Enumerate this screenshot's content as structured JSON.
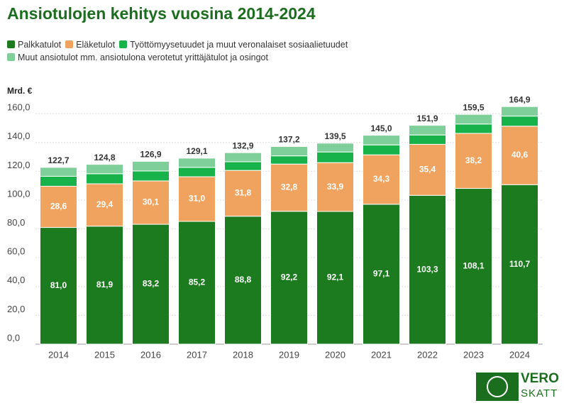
{
  "chart_data": {
    "type": "stacked-bar",
    "title": "Ansiotulojen kehitys vuosina 2014-2024",
    "y_label": "Mrd. €",
    "categories": [
      "2014",
      "2015",
      "2016",
      "2017",
      "2018",
      "2019",
      "2020",
      "2021",
      "2022",
      "2023",
      "2024"
    ],
    "series": [
      {
        "name": "Palkkatulot",
        "color": "#1c7a1f",
        "values": [
          81.0,
          81.9,
          83.2,
          85.2,
          88.8,
          92.2,
          92.1,
          97.1,
          103.3,
          108.1,
          110.7
        ],
        "value_labels": [
          "81,0",
          "81,9",
          "83,2",
          "85,2",
          "88,8",
          "92,2",
          "92,1",
          "97,1",
          "103,3",
          "108,1",
          "110,7"
        ]
      },
      {
        "name": "Eläketulot",
        "color": "#f0a35e",
        "values": [
          28.6,
          29.4,
          30.1,
          31.0,
          31.8,
          32.8,
          33.9,
          34.3,
          35.4,
          38.2,
          40.6
        ],
        "value_labels": [
          "28,6",
          "29,4",
          "30,1",
          "31,0",
          "31,8",
          "32,8",
          "33,9",
          "34,3",
          "35,4",
          "38,2",
          "40,6"
        ]
      },
      {
        "name": "Työttömyysetuudet ja muut veronalaiset sosiaalietuudet",
        "color": "#17b24a",
        "values": [
          6.9,
          7.0,
          6.9,
          6.5,
          6.0,
          5.7,
          7.4,
          6.9,
          6.5,
          6.5,
          7.0
        ]
      },
      {
        "name": "Muut ansiotulot mm. ansiotulona verotetut yrittäjätulot ja osingot",
        "color": "#7fcf9a",
        "values": [
          6.2,
          6.5,
          6.7,
          6.4,
          6.3,
          6.5,
          6.1,
          6.7,
          6.7,
          6.7,
          6.6
        ]
      }
    ],
    "totals": [
      122.7,
      124.8,
      126.9,
      129.1,
      132.9,
      137.2,
      139.5,
      145.0,
      151.9,
      159.5,
      164.9
    ],
    "total_labels": [
      "122,7",
      "124,8",
      "126,9",
      "129,1",
      "132,9",
      "137,2",
      "139,5",
      "145,0",
      "151,9",
      "159,5",
      "164,9"
    ],
    "ylim": [
      0,
      165
    ],
    "yticks": [
      {
        "value": 0,
        "label": "0,0"
      },
      {
        "value": 20,
        "label": "20,0"
      },
      {
        "value": 40,
        "label": "40,0"
      },
      {
        "value": 60,
        "label": "60,0"
      },
      {
        "value": 80,
        "label": "80,0"
      },
      {
        "value": 100,
        "label": "100,0"
      },
      {
        "value": 120,
        "label": "120,0"
      },
      {
        "value": 140,
        "label": "140,0"
      },
      {
        "value": 160,
        "label": "160,0"
      }
    ],
    "grid": true
  },
  "logo": {
    "line1": "VERO",
    "line2": "SKATT"
  }
}
